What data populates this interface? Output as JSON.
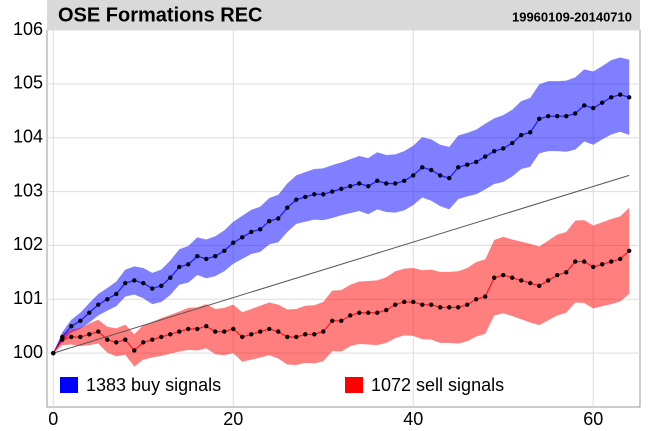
{
  "chart_data": {
    "type": "line",
    "title": "OSE Formations REC",
    "subtitle": "19960109-20140710",
    "x": [
      0,
      1,
      2,
      3,
      4,
      5,
      6,
      7,
      8,
      9,
      10,
      11,
      12,
      13,
      14,
      15,
      16,
      17,
      18,
      19,
      20,
      21,
      22,
      23,
      24,
      25,
      26,
      27,
      28,
      29,
      30,
      31,
      32,
      33,
      34,
      35,
      36,
      37,
      38,
      39,
      40,
      41,
      42,
      43,
      44,
      45,
      46,
      47,
      48,
      49,
      50,
      51,
      52,
      53,
      54,
      55,
      56,
      57,
      58,
      59,
      60,
      61,
      62,
      63,
      64
    ],
    "series": [
      {
        "name": "1383 buy signals",
        "color": "#0000ff",
        "values": [
          100,
          100.3,
          100.5,
          100.6,
          100.75,
          100.9,
          101.0,
          101.1,
          101.3,
          101.35,
          101.3,
          101.2,
          101.25,
          101.4,
          101.6,
          101.65,
          101.8,
          101.75,
          101.8,
          101.9,
          102.05,
          102.15,
          102.25,
          102.3,
          102.45,
          102.5,
          102.7,
          102.85,
          102.9,
          102.95,
          102.95,
          103.0,
          103.05,
          103.1,
          103.15,
          103.1,
          103.2,
          103.15,
          103.15,
          103.2,
          103.3,
          103.45,
          103.4,
          103.3,
          103.25,
          103.45,
          103.5,
          103.55,
          103.65,
          103.75,
          103.8,
          103.9,
          104.05,
          104.1,
          104.35,
          104.4,
          104.4,
          104.4,
          104.45,
          104.6,
          104.55,
          104.65,
          104.75,
          104.8,
          104.75
        ],
        "errors": [
          0,
          0.09,
          0.12,
          0.15,
          0.18,
          0.2,
          0.21,
          0.23,
          0.25,
          0.26,
          0.28,
          0.29,
          0.3,
          0.32,
          0.33,
          0.34,
          0.35,
          0.36,
          0.37,
          0.38,
          0.39,
          0.4,
          0.41,
          0.42,
          0.43,
          0.44,
          0.45,
          0.45,
          0.46,
          0.47,
          0.48,
          0.49,
          0.49,
          0.5,
          0.51,
          0.52,
          0.53,
          0.53,
          0.54,
          0.55,
          0.55,
          0.56,
          0.57,
          0.57,
          0.58,
          0.59,
          0.59,
          0.6,
          0.61,
          0.61,
          0.62,
          0.62,
          0.63,
          0.64,
          0.64,
          0.65,
          0.65,
          0.66,
          0.67,
          0.67,
          0.68,
          0.68,
          0.69,
          0.69,
          0.7
        ]
      },
      {
        "name": "1072 sell signals",
        "color": "#ff0000",
        "values": [
          100,
          100.25,
          100.3,
          100.3,
          100.35,
          100.4,
          100.25,
          100.2,
          100.25,
          100.05,
          100.2,
          100.25,
          100.3,
          100.35,
          100.4,
          100.45,
          100.45,
          100.5,
          100.4,
          100.4,
          100.45,
          100.3,
          100.35,
          100.4,
          100.45,
          100.4,
          100.3,
          100.3,
          100.35,
          100.35,
          100.4,
          100.6,
          100.6,
          100.7,
          100.75,
          100.75,
          100.75,
          100.8,
          100.9,
          100.95,
          100.95,
          100.9,
          100.9,
          100.85,
          100.85,
          100.85,
          100.9,
          101.0,
          101.05,
          101.4,
          101.45,
          101.4,
          101.35,
          101.3,
          101.25,
          101.35,
          101.45,
          101.5,
          101.7,
          101.7,
          101.6,
          101.65,
          101.7,
          101.75,
          101.9
        ],
        "errors": [
          0,
          0.1,
          0.14,
          0.17,
          0.2,
          0.22,
          0.24,
          0.26,
          0.28,
          0.3,
          0.32,
          0.33,
          0.35,
          0.36,
          0.37,
          0.39,
          0.4,
          0.41,
          0.42,
          0.44,
          0.45,
          0.46,
          0.47,
          0.48,
          0.49,
          0.5,
          0.51,
          0.52,
          0.53,
          0.54,
          0.55,
          0.56,
          0.57,
          0.57,
          0.58,
          0.59,
          0.6,
          0.61,
          0.62,
          0.62,
          0.63,
          0.64,
          0.65,
          0.66,
          0.66,
          0.67,
          0.68,
          0.69,
          0.69,
          0.7,
          0.71,
          0.71,
          0.72,
          0.73,
          0.73,
          0.74,
          0.75,
          0.75,
          0.76,
          0.77,
          0.77,
          0.78,
          0.79,
          0.79,
          0.8
        ]
      }
    ],
    "benchmark": {
      "x": [
        0,
        64
      ],
      "values": [
        100,
        103.3
      ],
      "color": "#555555"
    },
    "xlim": [
      -0.7,
      65.2
    ],
    "ylim": [
      99,
      106
    ],
    "xticks": [
      0,
      20,
      40,
      60
    ],
    "yticks": [
      100,
      101,
      102,
      103,
      104,
      105,
      106
    ],
    "grid": true,
    "legend": "bottom"
  }
}
